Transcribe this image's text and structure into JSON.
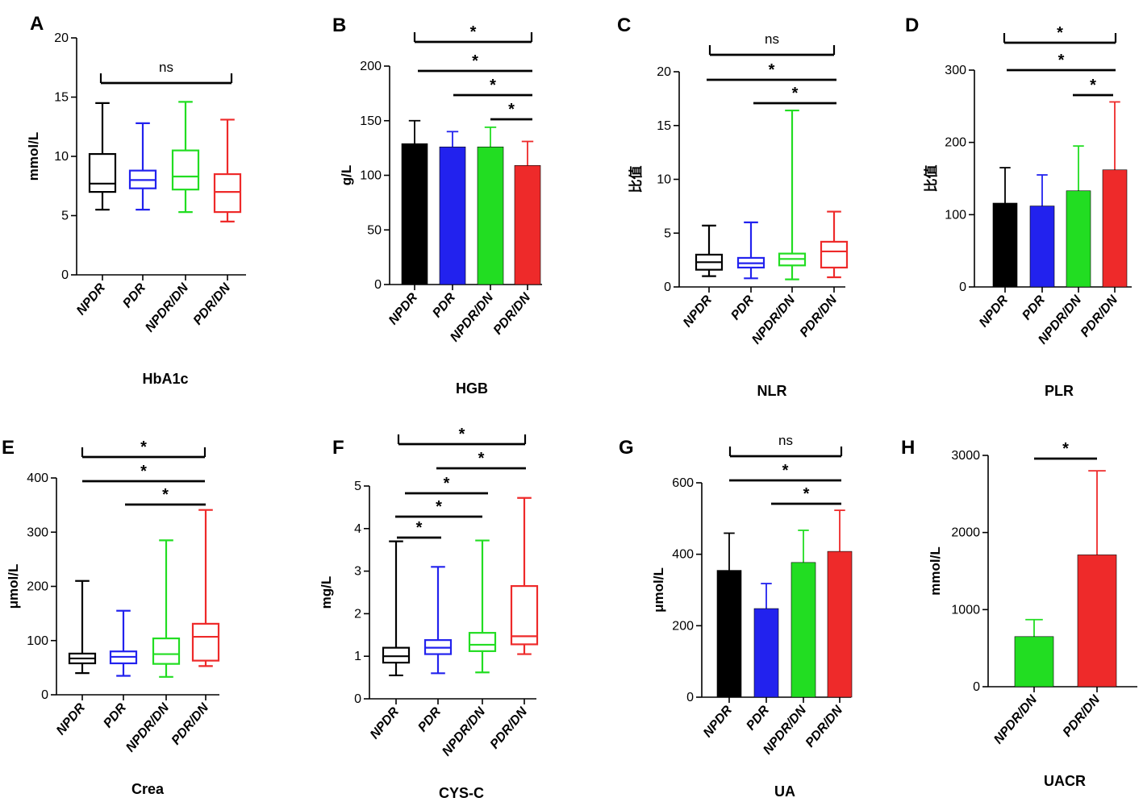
{
  "chart_data": [
    {
      "panel": "A",
      "type": "box",
      "title": "HbA1c",
      "ylabel": "mmol/L",
      "ylim": [
        0,
        20
      ],
      "yticks": [
        0,
        5,
        10,
        15,
        20
      ],
      "categories": [
        "NPDR",
        "PDR",
        "NPDR/DN",
        "PDR/DN"
      ],
      "boxes": [
        {
          "min": 5.5,
          "q1": 7.0,
          "median": 7.7,
          "q3": 10.2,
          "max": 14.5
        },
        {
          "min": 5.5,
          "q1": 7.3,
          "median": 8.0,
          "q3": 8.8,
          "max": 12.8
        },
        {
          "min": 5.3,
          "q1": 7.2,
          "median": 8.3,
          "q3": 10.5,
          "max": 14.6
        },
        {
          "min": 4.5,
          "q1": 5.3,
          "median": 7.0,
          "q3": 8.5,
          "max": 13.1
        }
      ],
      "significance": [
        {
          "from": 0,
          "to": 3,
          "label": "ns"
        }
      ]
    },
    {
      "panel": "B",
      "type": "bar",
      "title": "HGB",
      "ylabel": "g/L",
      "ylim": [
        0,
        200
      ],
      "yticks": [
        0,
        50,
        100,
        150,
        200
      ],
      "categories": [
        "NPDR",
        "PDR",
        "NPDR/DN",
        "PDR/DN"
      ],
      "values": [
        129,
        126,
        126,
        109
      ],
      "errors": [
        21,
        14,
        18,
        22
      ],
      "significance": [
        {
          "from": 0,
          "to": 3,
          "label": "*"
        },
        {
          "from": 0,
          "to": 3,
          "label": "*"
        },
        {
          "from": 1,
          "to": 3,
          "label": "*"
        },
        {
          "from": 2,
          "to": 3,
          "label": "*"
        }
      ]
    },
    {
      "panel": "C",
      "type": "box",
      "title": "NLR",
      "ylabel": "比值",
      "ylim": [
        0,
        20
      ],
      "yticks": [
        0,
        5,
        10,
        15,
        20
      ],
      "categories": [
        "NPDR",
        "PDR",
        "NPDR/DN",
        "PDR/DN"
      ],
      "boxes": [
        {
          "min": 1.0,
          "q1": 1.6,
          "median": 2.3,
          "q3": 3.0,
          "max": 5.7
        },
        {
          "min": 0.8,
          "q1": 1.8,
          "median": 2.2,
          "q3": 2.7,
          "max": 6.0
        },
        {
          "min": 0.7,
          "q1": 2.0,
          "median": 2.6,
          "q3": 3.1,
          "max": 16.4
        },
        {
          "min": 0.9,
          "q1": 1.8,
          "median": 3.3,
          "q3": 4.2,
          "max": 7.0
        }
      ],
      "significance": [
        {
          "from": 0,
          "to": 3,
          "label": "ns"
        },
        {
          "from": 0,
          "to": 3,
          "label": "*"
        },
        {
          "from": 1,
          "to": 3,
          "label": "*"
        }
      ]
    },
    {
      "panel": "D",
      "type": "bar",
      "title": "PLR",
      "ylabel": "比值",
      "ylim": [
        0,
        300
      ],
      "yticks": [
        0,
        100,
        200,
        300
      ],
      "categories": [
        "NPDR",
        "PDR",
        "NPDR/DN",
        "PDR/DN"
      ],
      "values": [
        116,
        112,
        133,
        162
      ],
      "errors": [
        49,
        43,
        62,
        94
      ],
      "significance": [
        {
          "from": 0,
          "to": 3,
          "label": "*"
        },
        {
          "from": 0,
          "to": 3,
          "label": "*"
        },
        {
          "from": 2,
          "to": 3,
          "label": "*"
        }
      ]
    },
    {
      "panel": "E",
      "type": "box",
      "title": "Crea",
      "ylabel": "μmol/L",
      "ylim": [
        0,
        400
      ],
      "yticks": [
        0,
        100,
        200,
        300,
        400
      ],
      "categories": [
        "NPDR",
        "PDR",
        "NPDR/DN",
        "PDR/DN"
      ],
      "boxes": [
        {
          "min": 40,
          "q1": 58,
          "median": 67,
          "q3": 76,
          "max": 210
        },
        {
          "min": 35,
          "q1": 58,
          "median": 70,
          "q3": 80,
          "max": 155
        },
        {
          "min": 33,
          "q1": 57,
          "median": 75,
          "q3": 104,
          "max": 285
        },
        {
          "min": 53,
          "q1": 63,
          "median": 107,
          "q3": 131,
          "max": 341
        }
      ],
      "significance": [
        {
          "from": 0,
          "to": 3,
          "label": "*"
        },
        {
          "from": 0,
          "to": 3,
          "label": "*"
        },
        {
          "from": 1,
          "to": 3,
          "label": "*"
        }
      ]
    },
    {
      "panel": "F",
      "type": "box",
      "title": "CYS-C",
      "ylabel": "mg/L",
      "ylim": [
        0,
        5
      ],
      "yticks": [
        0,
        1,
        2,
        3,
        4,
        5
      ],
      "categories": [
        "NPDR",
        "PDR",
        "NPDR/DN",
        "PDR/DN"
      ],
      "boxes": [
        {
          "min": 0.55,
          "q1": 0.85,
          "median": 1.0,
          "q3": 1.2,
          "max": 3.7
        },
        {
          "min": 0.6,
          "q1": 1.05,
          "median": 1.2,
          "q3": 1.38,
          "max": 3.1
        },
        {
          "min": 0.62,
          "q1": 1.12,
          "median": 1.27,
          "q3": 1.55,
          "max": 3.72
        },
        {
          "min": 1.05,
          "q1": 1.28,
          "median": 1.47,
          "q3": 2.65,
          "max": 4.72
        }
      ],
      "significance": [
        {
          "from": 0,
          "to": 3,
          "label": "*"
        },
        {
          "from": 1,
          "to": 3,
          "label": "*"
        },
        {
          "from": 0,
          "to": 2,
          "label": "*"
        },
        {
          "from": 0,
          "to": 2,
          "label": "*"
        },
        {
          "from": 0,
          "to": 1,
          "label": "*"
        }
      ]
    },
    {
      "panel": "G",
      "type": "bar",
      "title": "UA",
      "ylabel": "μmol/L",
      "ylim": [
        0,
        600
      ],
      "yticks": [
        0,
        200,
        400,
        600
      ],
      "categories": [
        "NPDR",
        "PDR",
        "NPDR/DN",
        "PDR/DN"
      ],
      "values": [
        355,
        248,
        377,
        408
      ],
      "errors": [
        104,
        70,
        90,
        115
      ],
      "significance": [
        {
          "from": 0,
          "to": 3,
          "label": "ns"
        },
        {
          "from": 0,
          "to": 3,
          "label": "*"
        },
        {
          "from": 1,
          "to": 3,
          "label": "*"
        }
      ]
    },
    {
      "panel": "H",
      "type": "bar",
      "title": "UACR",
      "ylabel": "mmol/L",
      "ylim": [
        0,
        3000
      ],
      "yticks": [
        0,
        1000,
        2000,
        3000
      ],
      "categories": [
        "NPDR/DN",
        "PDR/DN"
      ],
      "values": [
        650,
        1710
      ],
      "errors": [
        220,
        1090
      ],
      "significance": [
        {
          "from": 0,
          "to": 1,
          "label": "*"
        }
      ]
    }
  ],
  "colors": {
    "NPDR": "#000000",
    "PDR": "#2222ee",
    "NPDR/DN": "#22dd22",
    "PDR/DN": "#ee2a2a"
  }
}
